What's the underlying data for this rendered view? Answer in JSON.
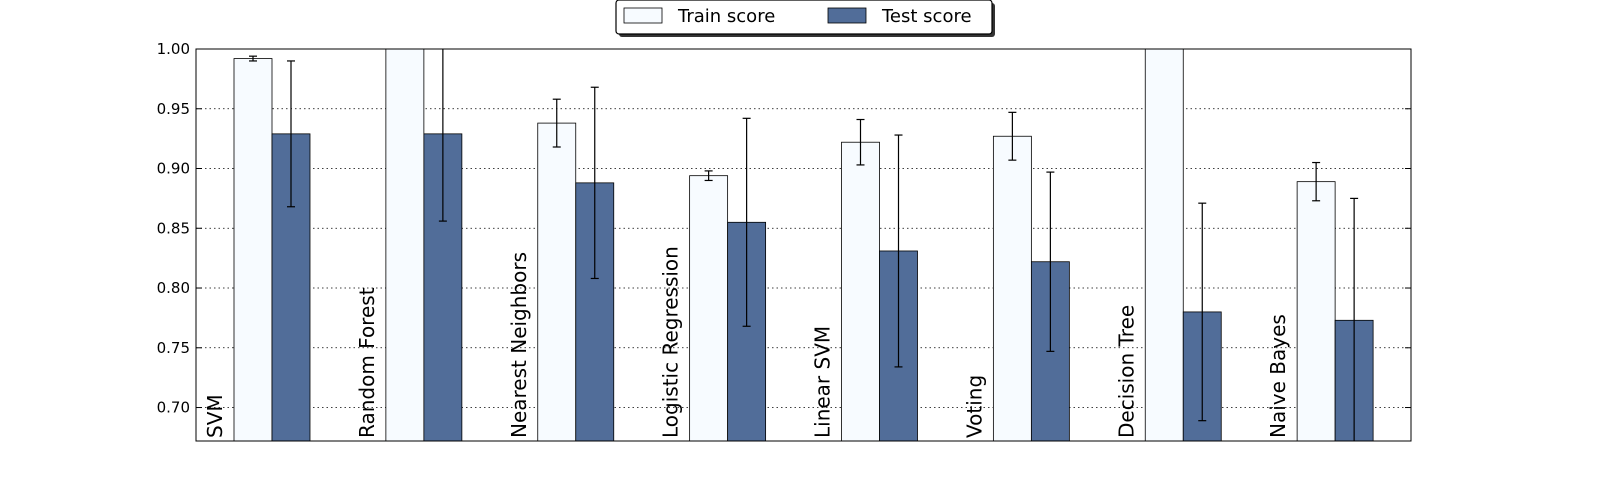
{
  "chart_data": {
    "type": "bar",
    "orientation": "vertical",
    "categories": [
      "SVM",
      "Random Forest",
      "Nearest Neighbors",
      "Logistic Regression",
      "Linear SVM",
      "Voting",
      "Decision Tree",
      "Naive Bayes"
    ],
    "series": [
      {
        "name": "Train score",
        "color": "#f7fbff",
        "values": [
          0.992,
          1.0,
          0.938,
          0.894,
          0.922,
          0.927,
          1.0,
          0.889
        ],
        "errors": [
          0.002,
          0.0,
          0.02,
          0.004,
          0.019,
          0.02,
          0.0,
          0.016
        ]
      },
      {
        "name": "Test score",
        "color": "#516d99",
        "values": [
          0.929,
          0.929,
          0.888,
          0.855,
          0.831,
          0.822,
          0.78,
          0.773
        ],
        "errors": [
          0.061,
          0.073,
          0.08,
          0.087,
          0.097,
          0.075,
          0.091,
          0.102
        ]
      }
    ],
    "ylim": [
      0.672,
      1.0
    ],
    "yticks": [
      "0.70",
      "0.75",
      "0.80",
      "0.85",
      "0.90",
      "0.95",
      "1.00"
    ],
    "grid": "horizontal dotted",
    "legend": "top-center",
    "title": "",
    "xlabel": "",
    "ylabel": ""
  }
}
